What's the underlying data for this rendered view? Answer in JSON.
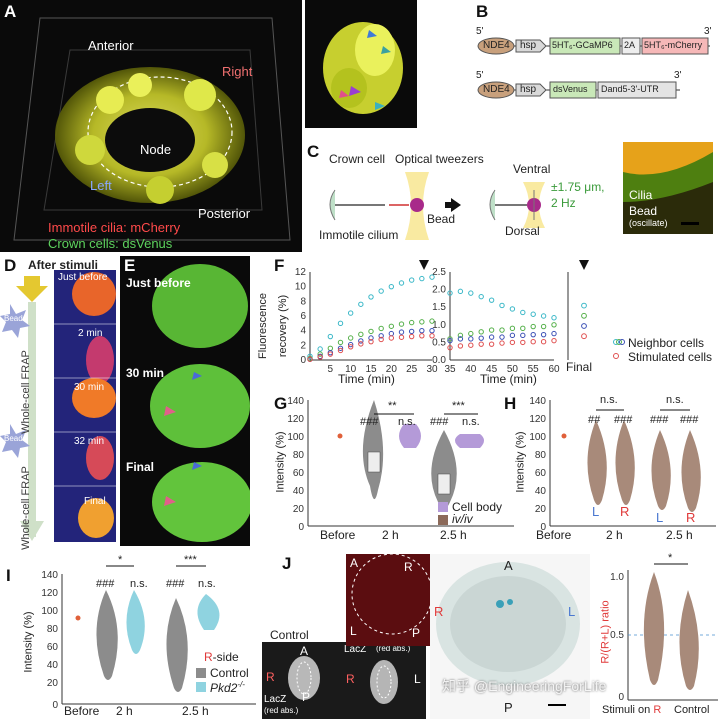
{
  "panels": {
    "A": "A",
    "B": "B",
    "C": "C",
    "D": "D",
    "E": "E",
    "F": "F",
    "G": "G",
    "H": "H",
    "I": "I",
    "J": "J"
  },
  "panelA": {
    "anterior": "Anterior",
    "right": "Right",
    "node": "Node",
    "left": "Left",
    "posterior": "Posterior",
    "legend1": "Immotile cilia: mCherry",
    "legend2": "Crown cells: dsVenus"
  },
  "panelB": {
    "row1": {
      "prime5": "5'",
      "prime3": "3'",
      "nde4": "NDE4",
      "hsp": "hsp",
      "gene1": "5HT₆-GCaMP6",
      "t2a": "2A",
      "gene2": "5HT₆-mCherry"
    },
    "row2": {
      "prime5": "5'",
      "prime3": "3'",
      "nde4": "NDE4",
      "hsp": "hsp",
      "gene1": "dsVenus",
      "utr": "Dand5-3'-UTR"
    }
  },
  "panelC": {
    "crown": "Crown cell",
    "tweezers": "Optical tweezers",
    "immotile": "Immotile cilium",
    "bead": "Bead",
    "ventral": "Ventral",
    "dorsal": "Dorsal",
    "amplitude": "±1.75 μm,",
    "freq": "2 Hz",
    "cilia": "Cilia",
    "bead2": "Bead",
    "oscillate": "(oscillate)"
  },
  "panelD": {
    "after": "After stimuli",
    "just_before": "Just before",
    "t2": "2 min",
    "t30": "30 min",
    "t32": "32 min",
    "final": "Final",
    "frap": "Whole-cell FRAP",
    "beads": "Beads"
  },
  "panelE": {
    "just_before": "Just before",
    "t30": "30 min",
    "final": "Final"
  },
  "panelF": {
    "ylabel1": "Fluorescence",
    "ylabel2": "recovery (%)",
    "xlabel": "Time (min)",
    "final": "Final",
    "legend_neighbor": "Neighbor cells",
    "legend_stim": "Stimulated cells"
  },
  "panelG": {
    "ylabel": "Intensity (%)",
    "legend1": "Cell body",
    "legend2": "iv/iv",
    "before": "Before",
    "t2h": "2 h",
    "t25h": "2.5 h",
    "sig": [
      "**",
      "***"
    ],
    "ns": "n.s.",
    "hash": "###"
  },
  "panelH": {
    "ylabel": "Intensity (%)",
    "before": "Before",
    "t2h": "2 h",
    "t25h": "2.5 h",
    "ns": "n.s.",
    "h2": "##",
    "hash": "###",
    "L": "L",
    "R": "R"
  },
  "panelI": {
    "ylabel": "Intensity (%)",
    "before": "Before",
    "t2h": "2 h",
    "t25h": "2.5 h",
    "sig": [
      "*",
      "***"
    ],
    "ns": "n.s.",
    "hash": "###",
    "rside_r": "R",
    "rside_rest": "-side",
    "control": "Control",
    "pkd2": "Pkd2",
    "pkd2_sup": "-/-"
  },
  "panelJ": {
    "control": "Control",
    "A": "A",
    "R": "R",
    "L": "L",
    "P": "P",
    "lacz1": "LacZ",
    "lacz1b": "(red abs.)",
    "lacz2": "LacZ",
    "lacz2b": "(red abs.)",
    "ratio_label": "R/(R+L) ratio",
    "stim_on": "Stimuli on ",
    "stim_R": "R",
    "control2": "Control",
    "sig": "*",
    "watermark": "知乎 @EngineeringForLife"
  },
  "colors": {
    "cyan": "#3bb8c8",
    "green": "#55b04a",
    "blue": "#3a4fb5",
    "red": "#e05050",
    "violin_gray": "#8c8c8c",
    "violin_purple": "#b49ad8",
    "violin_brown": "#b08878",
    "violin_cyan": "#8fd3e0"
  },
  "chart_data": [
    {
      "type": "scatter",
      "title": "",
      "xlabel": "Time (min)",
      "ylabel": "Fluorescence recovery (%)",
      "ylim": [
        0,
        12
      ],
      "x": [
        0,
        2.5,
        5,
        7.5,
        10,
        12.5,
        15,
        17.5,
        20,
        22.5,
        25,
        27.5,
        30
      ],
      "series": [
        {
          "name": "Neighbor cells",
          "values": [
            0.5,
            1.5,
            3.2,
            5.0,
            6.4,
            7.6,
            8.6,
            9.4,
            10.0,
            10.5,
            10.9,
            11.1,
            11.3
          ]
        },
        {
          "name": "Neighbor cells",
          "values": [
            0.2,
            0.8,
            1.6,
            2.4,
            3.0,
            3.5,
            3.9,
            4.3,
            4.6,
            4.9,
            5.1,
            5.2,
            5.3
          ]
        },
        {
          "name": "Neighbor cells",
          "values": [
            0.1,
            0.5,
            1.0,
            1.6,
            2.1,
            2.6,
            3.0,
            3.3,
            3.6,
            3.8,
            3.9,
            4.0,
            4.0
          ]
        },
        {
          "name": "Stimulated cells",
          "values": [
            0.1,
            0.4,
            0.8,
            1.3,
            1.8,
            2.2,
            2.5,
            2.8,
            3.0,
            3.1,
            3.2,
            3.3,
            3.3
          ]
        }
      ]
    },
    {
      "type": "scatter",
      "xlabel": "Time (min)",
      "ylim": [
        0,
        2.5
      ],
      "x": [
        35,
        37.5,
        40,
        42.5,
        45,
        47.5,
        50,
        52.5,
        55,
        57.5,
        60
      ],
      "series": [
        {
          "name": "Neighbor cells",
          "values": [
            1.9,
            1.95,
            1.9,
            1.8,
            1.7,
            1.55,
            1.45,
            1.35,
            1.3,
            1.25,
            1.2
          ]
        },
        {
          "name": "Neighbor cells",
          "values": [
            0.6,
            0.7,
            0.75,
            0.8,
            0.85,
            0.85,
            0.9,
            0.9,
            0.95,
            0.95,
            1.0
          ]
        },
        {
          "name": "Neighbor cells",
          "values": [
            0.55,
            0.6,
            0.6,
            0.62,
            0.65,
            0.65,
            0.7,
            0.7,
            0.72,
            0.72,
            0.75
          ]
        },
        {
          "name": "Stimulated cells",
          "values": [
            0.35,
            0.4,
            0.42,
            0.45,
            0.45,
            0.48,
            0.5,
            0.5,
            0.52,
            0.52,
            0.55
          ]
        }
      ]
    },
    {
      "type": "scatter",
      "categories": [
        "Final"
      ],
      "series": [
        {
          "name": "Neighbor cells",
          "values": [
            1.6
          ]
        },
        {
          "name": "Neighbor cells",
          "values": [
            1.3
          ]
        },
        {
          "name": "Neighbor cells",
          "values": [
            1.0
          ]
        },
        {
          "name": "Stimulated cells",
          "values": [
            0.7
          ]
        }
      ]
    }
  ]
}
